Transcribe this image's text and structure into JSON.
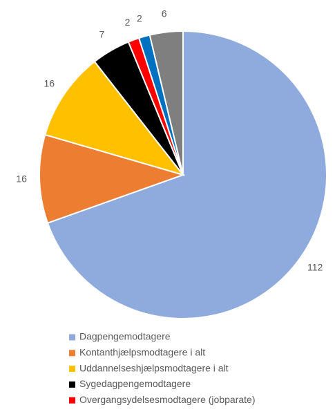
{
  "chart_data": {
    "type": "pie",
    "categories": [
      "Dagpengemodtagere",
      "Kontanthjælpsmodtagere i alt",
      "Uddannelseshjælpsmodtagere i alt",
      "Sygedagpengemodtagere",
      "Overgangsydelsesmodtagere (jobparate)",
      null,
      null
    ],
    "values": [
      112,
      16,
      16,
      7,
      2,
      2,
      6
    ],
    "colors": [
      "#8faadc",
      "#ed7d31",
      "#ffc000",
      "#000000",
      "#ff0000",
      "#0070c0",
      "#7f7f7f"
    ],
    "legend": "bottom"
  }
}
